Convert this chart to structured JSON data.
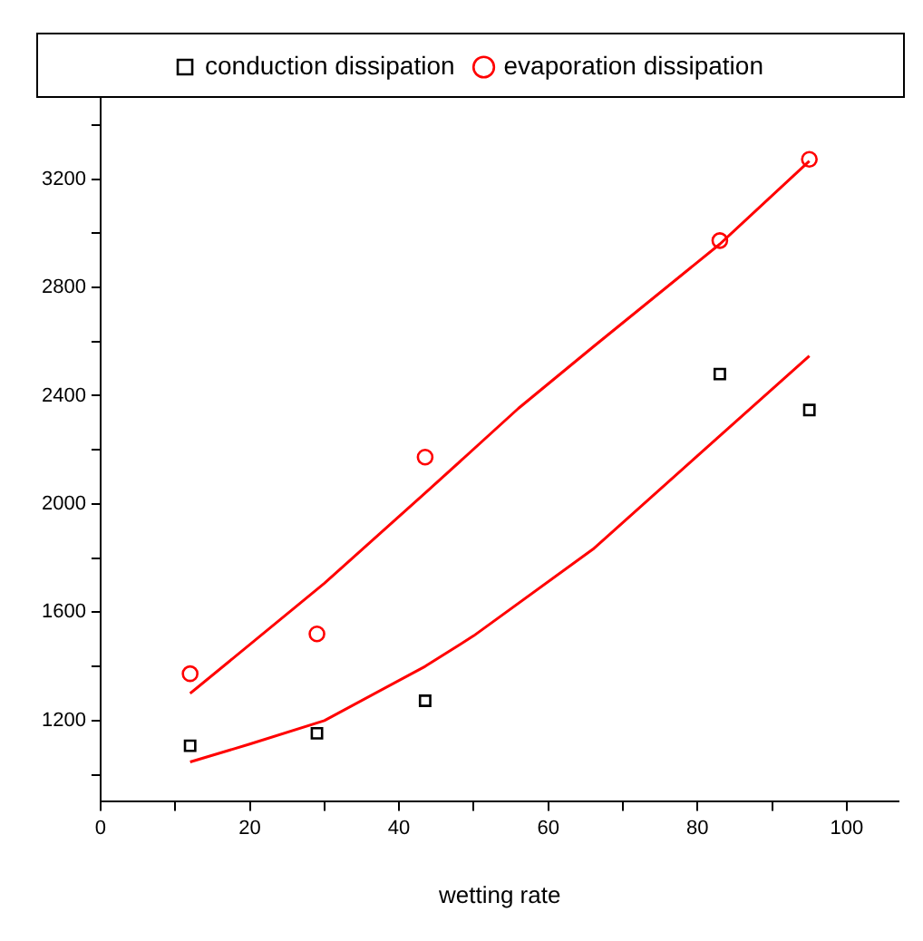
{
  "chart_data": {
    "type": "scatter",
    "xlabel": "wetting rate",
    "xlim": [
      0,
      107
    ],
    "xticks": [
      0,
      {
        "value": 10,
        "label": null
      },
      20,
      {
        "value": 30,
        "label": null
      },
      40,
      {
        "value": 50,
        "label": null
      },
      60,
      {
        "value": 70,
        "label": null
      },
      80,
      {
        "value": 90,
        "label": null
      },
      100
    ],
    "ylim": [
      900,
      3500
    ],
    "yticks": [
      {
        "value": 1000,
        "label": null
      },
      1200,
      {
        "value": 1400,
        "label": null
      },
      1600,
      {
        "value": 1800,
        "label": null
      },
      2000,
      {
        "value": 2200,
        "label": null
      },
      2400,
      {
        "value": 2600,
        "label": null
      },
      2800,
      {
        "value": 3000,
        "label": null
      },
      3200,
      {
        "value": 3400,
        "label": null
      }
    ],
    "grid": false,
    "legend": "top",
    "series": [
      {
        "name": "conduction dissipation",
        "type": "scatter",
        "color": "#000000",
        "marker": "square",
        "x": [
          12,
          29,
          43.5,
          83,
          95
        ],
        "values": [
          1107,
          1153,
          1273,
          2480,
          2347
        ]
      },
      {
        "name": "evaporation dissipation",
        "type": "scatter",
        "color": "#ff0000",
        "marker": "circle",
        "x": [
          12,
          29,
          43.5,
          83,
          95
        ],
        "values": [
          1373,
          1520,
          2173,
          2973,
          3273
        ]
      },
      {
        "type": "line",
        "color": "#ff0000",
        "marker": "none",
        "line_style": "solid",
        "x": [
          12,
          20,
          30,
          43.5,
          50,
          66,
          82,
          95
        ],
        "values": [
          1047,
          1113,
          1200,
          1400,
          1513,
          1833,
          2227,
          2547
        ]
      },
      {
        "type": "line",
        "color": "#ff0000",
        "marker": "none",
        "line_style": "solid",
        "x": [
          12,
          30,
          43.5,
          56,
          66,
          83,
          95
        ],
        "values": [
          1300,
          1707,
          2040,
          2353,
          2580,
          2960,
          3267
        ]
      }
    ]
  }
}
